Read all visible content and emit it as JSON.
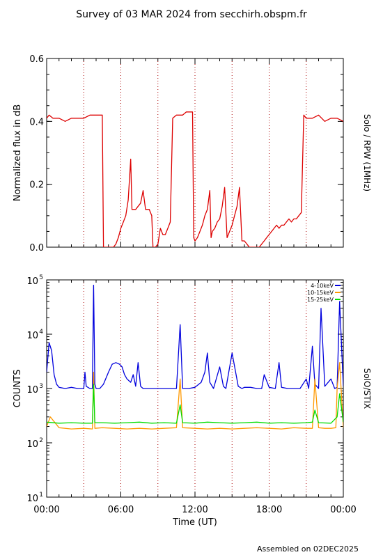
{
  "header": {
    "title": "Survey of 03 MAR 2024 from secchirh.obspm.fr"
  },
  "footer": {
    "assembled": "Assembled on 02DEC2025"
  },
  "chart_data": [
    {
      "type": "line",
      "panel": "top",
      "ylabel": "Normalized flux in dB",
      "right_label": "Solo / RPW (1MHz)",
      "ylim": [
        0.0,
        0.6
      ],
      "xlim": [
        0,
        24
      ],
      "yticks": [
        0.0,
        0.2,
        0.4,
        0.6
      ],
      "ytick_labels": [
        "0.0",
        "0.2",
        "0.4",
        "0.6"
      ],
      "vlines": [
        3,
        6,
        9,
        12,
        15,
        18,
        21
      ],
      "series": [
        {
          "color": "#dd0000",
          "x": [
            0.0,
            0.2,
            0.5,
            1.0,
            1.5,
            2.0,
            2.5,
            3.0,
            3.5,
            4.0,
            4.3,
            4.5,
            4.6,
            4.7,
            4.8,
            5.0,
            5.2,
            5.4,
            5.6,
            5.8,
            6.0,
            6.2,
            6.4,
            6.6,
            6.8,
            6.9,
            7.0,
            7.2,
            7.4,
            7.6,
            7.8,
            8.0,
            8.1,
            8.3,
            8.5,
            8.6,
            8.8,
            9.0,
            9.2,
            9.4,
            9.6,
            9.8,
            10.0,
            10.2,
            10.5,
            10.8,
            11.0,
            11.3,
            11.6,
            11.8,
            11.9,
            12.0,
            12.2,
            12.4,
            12.6,
            12.8,
            13.0,
            13.2,
            13.3,
            13.4,
            13.6,
            13.8,
            14.0,
            14.2,
            14.4,
            14.6,
            14.8,
            15.0,
            15.2,
            15.4,
            15.6,
            15.8,
            16.0,
            16.2,
            16.4,
            16.6,
            16.8,
            17.0,
            17.2,
            17.4,
            17.6,
            17.8,
            18.0,
            18.2,
            18.4,
            18.6,
            18.8,
            19.0,
            19.2,
            19.4,
            19.6,
            19.8,
            20.0,
            20.2,
            20.4,
            20.6,
            20.8,
            21.0,
            21.5,
            22.0,
            22.5,
            23.0,
            23.5,
            24.0
          ],
          "y": [
            0.41,
            0.42,
            0.41,
            0.41,
            0.4,
            0.41,
            0.41,
            0.41,
            0.42,
            0.42,
            0.42,
            0.42,
            0.0,
            0.0,
            0.0,
            0.0,
            0.0,
            0.0,
            0.01,
            0.03,
            0.06,
            0.08,
            0.1,
            0.15,
            0.28,
            0.12,
            0.12,
            0.12,
            0.13,
            0.14,
            0.18,
            0.12,
            0.12,
            0.12,
            0.1,
            0.0,
            0.0,
            0.01,
            0.06,
            0.04,
            0.04,
            0.06,
            0.08,
            0.41,
            0.42,
            0.42,
            0.42,
            0.43,
            0.43,
            0.43,
            0.03,
            0.02,
            0.03,
            0.05,
            0.07,
            0.1,
            0.12,
            0.18,
            0.03,
            0.05,
            0.06,
            0.08,
            0.09,
            0.13,
            0.19,
            0.03,
            0.05,
            0.07,
            0.1,
            0.13,
            0.19,
            0.02,
            0.02,
            0.01,
            0.0,
            0.0,
            0.0,
            0.0,
            0.0,
            0.01,
            0.02,
            0.03,
            0.04,
            0.05,
            0.06,
            0.07,
            0.06,
            0.07,
            0.07,
            0.08,
            0.09,
            0.08,
            0.09,
            0.09,
            0.1,
            0.11,
            0.42,
            0.41,
            0.41,
            0.42,
            0.4,
            0.41,
            0.41,
            0.4
          ]
        }
      ]
    },
    {
      "type": "line",
      "panel": "bottom",
      "ylabel": "COUNTS",
      "xlabel": "Time (UT)",
      "right_label": "SolO/STIX",
      "yscale": "log",
      "ylim": [
        10,
        100000
      ],
      "xlim": [
        0,
        24
      ],
      "ytick_exponents": [
        "1",
        "2",
        "3",
        "4",
        "5"
      ],
      "ytick_base": "10",
      "xtick_labels": [
        "00:00",
        "06:00",
        "12:00",
        "18:00",
        "00:00"
      ],
      "xticks": [
        0,
        6,
        12,
        18,
        24
      ],
      "vlines": [
        3,
        6,
        9,
        12,
        15,
        18,
        21
      ],
      "legend": {
        "placement": "top-right",
        "entries": [
          "4-10keV",
          "10-15keV",
          "15-25keV"
        ]
      },
      "series": [
        {
          "name": "4-10keV",
          "color": "#0000dd",
          "x": [
            0.0,
            0.2,
            0.4,
            0.6,
            0.8,
            1.0,
            1.5,
            2.0,
            2.5,
            3.0,
            3.1,
            3.2,
            3.5,
            3.7,
            3.8,
            3.9,
            4.0,
            4.3,
            4.6,
            5.0,
            5.3,
            5.6,
            5.9,
            6.1,
            6.3,
            6.5,
            6.8,
            7.0,
            7.2,
            7.4,
            7.6,
            7.8,
            8.0,
            8.5,
            9.0,
            9.5,
            10.0,
            10.5,
            10.8,
            11.0,
            11.5,
            12.0,
            12.5,
            12.8,
            13.0,
            13.2,
            13.5,
            14.0,
            14.3,
            14.5,
            15.0,
            15.5,
            15.8,
            16.0,
            16.5,
            17.0,
            17.4,
            17.6,
            18.0,
            18.5,
            18.8,
            19.0,
            19.5,
            20.0,
            20.5,
            21.0,
            21.2,
            21.5,
            21.7,
            22.0,
            22.2,
            22.5,
            23.0,
            23.3,
            23.5,
            23.7,
            24.0
          ],
          "y": [
            2000,
            7000,
            5000,
            1800,
            1200,
            1050,
            1000,
            1050,
            1000,
            1000,
            2000,
            1100,
            1000,
            1000,
            80000,
            1200,
            1000,
            1000,
            1200,
            2000,
            2800,
            3000,
            2800,
            2500,
            1800,
            1500,
            1300,
            1800,
            1100,
            3000,
            1100,
            1000,
            1000,
            1000,
            1000,
            1000,
            1000,
            1000,
            15000,
            1000,
            1000,
            1050,
            1300,
            2000,
            4500,
            1300,
            1000,
            2500,
            1100,
            1000,
            4500,
            1100,
            1000,
            1050,
            1050,
            1000,
            1000,
            1800,
            1050,
            1000,
            3000,
            1050,
            1000,
            1000,
            1000,
            1500,
            1000,
            6000,
            1200,
            1000,
            30000,
            1100,
            1500,
            1000,
            1050,
            40000,
            1100
          ]
        },
        {
          "name": "10-15keV",
          "color": "#ff9900",
          "x": [
            0.0,
            0.3,
            1.0,
            2.0,
            3.0,
            3.7,
            3.8,
            3.9,
            4.5,
            5.5,
            6.5,
            7.5,
            8.5,
            9.5,
            10.5,
            10.8,
            11.0,
            12.0,
            13.0,
            14.0,
            15.0,
            16.0,
            17.0,
            18.0,
            19.0,
            20.0,
            21.0,
            21.5,
            21.7,
            22.0,
            22.5,
            23.0,
            23.4,
            23.5,
            23.7,
            24.0
          ],
          "y": [
            200,
            300,
            190,
            180,
            185,
            180,
            2000,
            185,
            190,
            185,
            180,
            185,
            180,
            185,
            190,
            1500,
            190,
            185,
            180,
            185,
            180,
            185,
            190,
            185,
            180,
            190,
            185,
            185,
            1500,
            190,
            185,
            185,
            190,
            1000,
            3000,
            190
          ]
        },
        {
          "name": "15-25keV",
          "color": "#00dd00",
          "x": [
            0.0,
            1.0,
            2.0,
            3.0,
            3.7,
            3.8,
            3.9,
            4.5,
            5.5,
            6.5,
            7.5,
            8.5,
            9.5,
            10.5,
            10.8,
            11.0,
            12.0,
            13.0,
            14.0,
            15.0,
            16.0,
            17.0,
            18.0,
            19.0,
            20.0,
            21.0,
            21.5,
            21.7,
            22.0,
            23.0,
            23.5,
            23.7,
            24.0
          ],
          "y": [
            240,
            230,
            235,
            230,
            230,
            1200,
            235,
            235,
            230,
            235,
            240,
            230,
            235,
            230,
            500,
            235,
            230,
            240,
            235,
            230,
            235,
            240,
            230,
            235,
            230,
            235,
            240,
            400,
            235,
            230,
            300,
            800,
            240
          ]
        }
      ]
    }
  ]
}
